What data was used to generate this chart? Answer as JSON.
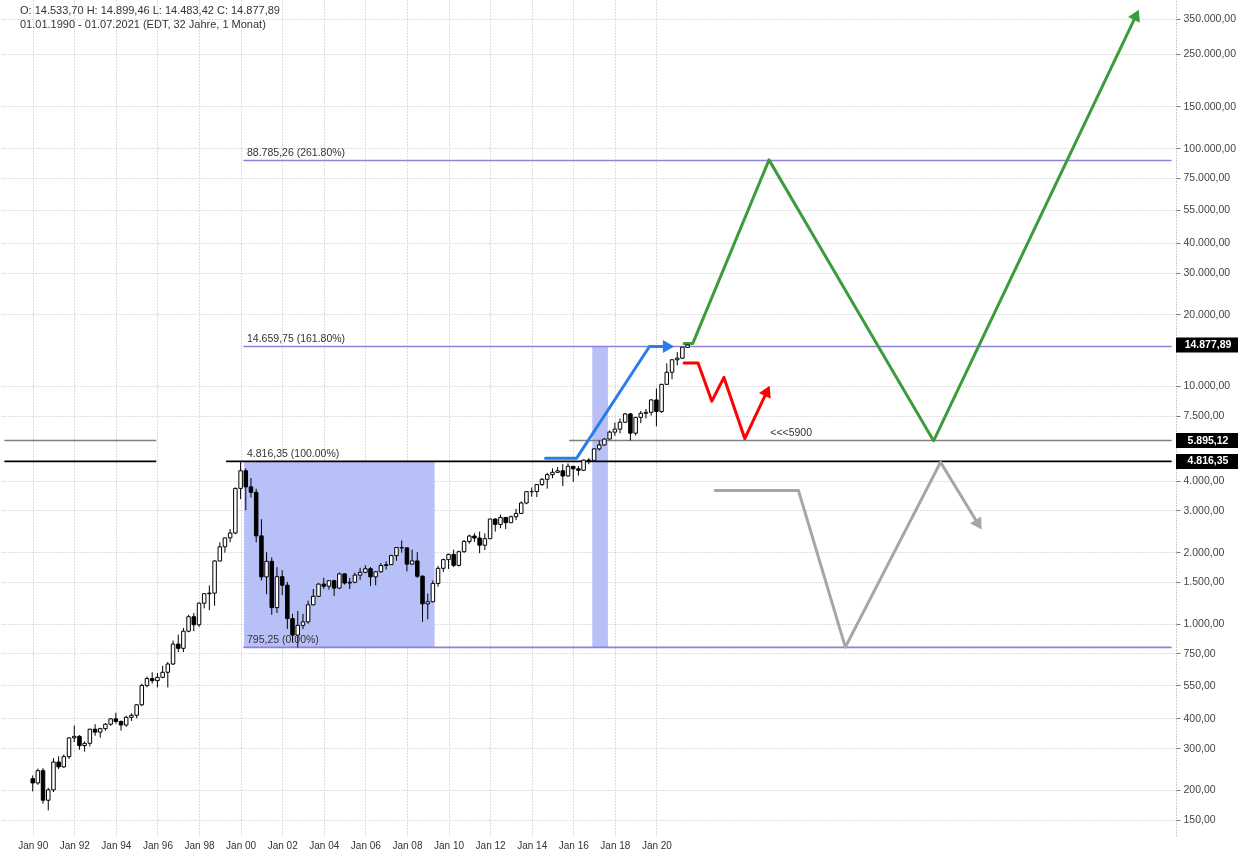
{
  "chart_data": {
    "type": "candlestick",
    "title": "O: 14.533,70 H: 14.899,46 L: 14.483,42 C: 14.877,89",
    "subtitle": "01.01.1990 - 01.07.2021 (EDT, 32 Jahre, 1 Monat)",
    "series": [
      {
        "name": "14.877,89",
        "color": "#000000",
        "x": [
          "1990-01",
          "1990-04",
          "1990-07",
          "1990-10",
          "1991-01",
          "1991-04",
          "1991-07",
          "1991-10",
          "1992-01",
          "1992-04",
          "1992-07",
          "1992-10",
          "1993-01",
          "1993-04",
          "1993-07",
          "1993-10",
          "1994-01",
          "1994-04",
          "1994-07",
          "1994-10",
          "1995-01",
          "1995-04",
          "1995-07",
          "1995-10",
          "1996-01",
          "1996-04",
          "1996-07",
          "1996-10",
          "1997-01",
          "1997-04",
          "1997-07",
          "1997-10",
          "1998-01",
          "1998-04",
          "1998-07",
          "1998-10",
          "1999-01",
          "1999-04",
          "1999-07",
          "1999-10",
          "2000-01",
          "2000-04",
          "2000-07",
          "2000-10",
          "2001-01",
          "2001-04",
          "2001-07",
          "2001-10",
          "2002-01",
          "2002-04",
          "2002-07",
          "2002-10",
          "2003-01",
          "2003-04",
          "2003-07",
          "2003-10",
          "2004-01",
          "2004-04",
          "2004-07",
          "2004-10",
          "2005-01",
          "2005-04",
          "2005-07",
          "2005-10",
          "2006-01",
          "2006-04",
          "2006-07",
          "2006-10",
          "2007-01",
          "2007-04",
          "2007-07",
          "2007-10",
          "2008-01",
          "2008-04",
          "2008-07",
          "2008-10",
          "2009-01",
          "2009-04",
          "2009-07",
          "2009-10",
          "2010-01",
          "2010-04",
          "2010-07",
          "2010-10",
          "2011-01",
          "2011-04",
          "2011-07",
          "2011-10",
          "2012-01",
          "2012-04",
          "2012-07",
          "2012-10",
          "2013-01",
          "2013-04",
          "2013-07",
          "2013-10",
          "2014-01",
          "2014-04",
          "2014-07",
          "2014-10",
          "2015-01",
          "2015-04",
          "2015-07",
          "2015-10",
          "2016-01",
          "2016-04",
          "2016-07",
          "2016-10",
          "2017-01",
          "2017-04",
          "2017-07",
          "2017-10",
          "2018-01",
          "2018-04",
          "2018-07",
          "2018-10",
          "2019-01",
          "2019-04",
          "2019-07",
          "2019-10",
          "2020-01",
          "2020-04",
          "2020-07",
          "2020-10",
          "2021-01",
          "2021-04",
          "2021-07"
        ],
        "ohlc": [
          [
            223,
            230,
            197,
            214
          ],
          [
            214,
            246,
            210,
            241
          ],
          [
            241,
            247,
            175,
            181
          ],
          [
            181,
            204,
            164,
            200
          ],
          [
            200,
            272,
            196,
            262
          ],
          [
            262,
            277,
            245,
            250
          ],
          [
            250,
            282,
            248,
            276
          ],
          [
            276,
            333,
            270,
            331
          ],
          [
            331,
            373,
            318,
            336
          ],
          [
            336,
            340,
            295,
            307
          ],
          [
            307,
            320,
            290,
            314
          ],
          [
            314,
            362,
            305,
            360
          ],
          [
            360,
            378,
            338,
            350
          ],
          [
            350,
            365,
            332,
            362
          ],
          [
            362,
            382,
            355,
            378
          ],
          [
            378,
            400,
            372,
            398
          ],
          [
            398,
            422,
            380,
            388
          ],
          [
            388,
            392,
            355,
            375
          ],
          [
            375,
            410,
            368,
            404
          ],
          [
            404,
            420,
            390,
            412
          ],
          [
            412,
            458,
            400,
            456
          ],
          [
            456,
            560,
            450,
            550
          ],
          [
            550,
            600,
            540,
            588
          ],
          [
            588,
            625,
            560,
            576
          ],
          [
            576,
            620,
            540,
            595
          ],
          [
            595,
            665,
            590,
            625
          ],
          [
            625,
            690,
            540,
            677
          ],
          [
            677,
            850,
            670,
            821
          ],
          [
            821,
            900,
            760,
            788
          ],
          [
            788,
            960,
            760,
            930
          ],
          [
            930,
            1090,
            920,
            1070
          ],
          [
            1070,
            1110,
            930,
            990
          ],
          [
            990,
            1230,
            970,
            1220
          ],
          [
            1220,
            1340,
            1160,
            1337
          ],
          [
            1337,
            1450,
            1140,
            1345
          ],
          [
            1345,
            1850,
            1190,
            1836
          ],
          [
            1836,
            2200,
            1830,
            2106
          ],
          [
            2106,
            2300,
            1990,
            2296
          ],
          [
            2296,
            2500,
            2200,
            2407
          ],
          [
            2407,
            3740,
            2380,
            3708
          ],
          [
            3708,
            4816.35,
            3340,
            4398
          ],
          [
            4398,
            4500,
            3000,
            3763
          ],
          [
            3763,
            4100,
            3400,
            3570
          ],
          [
            3570,
            3700,
            2200,
            2342
          ],
          [
            2342,
            2750,
            1520,
            1574
          ],
          [
            1574,
            2000,
            1330,
            1830
          ],
          [
            1830,
            1900,
            1090,
            1169
          ],
          [
            1169,
            1730,
            1110,
            1577
          ],
          [
            1577,
            1680,
            1320,
            1452
          ],
          [
            1452,
            1500,
            950,
            1051
          ],
          [
            1051,
            1100,
            835,
            896
          ],
          [
            896,
            1130,
            795.25,
            984
          ],
          [
            984,
            1100,
            950,
            1018
          ],
          [
            1018,
            1250,
            1000,
            1201
          ],
          [
            1201,
            1400,
            1195,
            1304
          ],
          [
            1304,
            1480,
            1300,
            1468
          ],
          [
            1468,
            1560,
            1400,
            1438
          ],
          [
            1438,
            1520,
            1390,
            1517
          ],
          [
            1517,
            1530,
            1310,
            1412
          ],
          [
            1412,
            1640,
            1400,
            1621
          ],
          [
            1621,
            1630,
            1460,
            1483
          ],
          [
            1483,
            1560,
            1400,
            1494
          ],
          [
            1494,
            1640,
            1480,
            1601
          ],
          [
            1601,
            1720,
            1530,
            1645
          ],
          [
            1645,
            1760,
            1630,
            1703
          ],
          [
            1703,
            1730,
            1440,
            1575
          ],
          [
            1575,
            1660,
            1450,
            1654
          ],
          [
            1654,
            1800,
            1640,
            1757
          ],
          [
            1757,
            1830,
            1690,
            1772
          ],
          [
            1772,
            1950,
            1770,
            1934
          ],
          [
            1934,
            2100,
            1840,
            2091
          ],
          [
            2091,
            2240,
            1990,
            2085
          ],
          [
            2085,
            2090,
            1660,
            1781
          ],
          [
            1781,
            2050,
            1770,
            1837
          ],
          [
            1837,
            2000,
            1560,
            1584
          ],
          [
            1584,
            1600,
            1018,
            1212
          ],
          [
            1212,
            1340,
            1043,
            1237
          ],
          [
            1237,
            1520,
            1230,
            1477
          ],
          [
            1477,
            1750,
            1430,
            1710
          ],
          [
            1710,
            1880,
            1650,
            1860
          ],
          [
            1860,
            1970,
            1700,
            1957
          ],
          [
            1957,
            2050,
            1730,
            1760
          ],
          [
            1760,
            2030,
            1740,
            2008
          ],
          [
            2008,
            2250,
            1990,
            2218
          ],
          [
            2218,
            2370,
            2170,
            2338
          ],
          [
            2338,
            2400,
            2210,
            2294
          ],
          [
            2294,
            2440,
            1980,
            2139
          ],
          [
            2139,
            2400,
            2040,
            2278
          ],
          [
            2278,
            2770,
            2270,
            2755
          ],
          [
            2755,
            2780,
            2440,
            2616
          ],
          [
            2616,
            2880,
            2520,
            2799
          ],
          [
            2799,
            2810,
            2500,
            2661
          ],
          [
            2661,
            2850,
            2650,
            2819
          ],
          [
            2819,
            3040,
            2730,
            2910
          ],
          [
            2910,
            3270,
            2900,
            3219
          ],
          [
            3219,
            3600,
            3180,
            3592
          ],
          [
            3592,
            3740,
            3420,
            3596
          ],
          [
            3596,
            3860,
            3410,
            3849
          ],
          [
            3849,
            4100,
            3800,
            4050
          ],
          [
            4050,
            4310,
            3700,
            4236
          ],
          [
            4236,
            4500,
            4090,
            4334
          ],
          [
            4334,
            4560,
            4300,
            4397
          ],
          [
            4397,
            4690,
            3790,
            4181
          ],
          [
            4181,
            4720,
            4170,
            4593
          ],
          [
            4593,
            4600,
            3950,
            4483
          ],
          [
            4483,
            4600,
            4200,
            4418
          ],
          [
            4418,
            4900,
            4400,
            4876
          ],
          [
            4876,
            4970,
            4690,
            4864
          ],
          [
            4864,
            5460,
            4840,
            5436
          ],
          [
            5436,
            5900,
            5350,
            5647
          ],
          [
            5647,
            6020,
            5600,
            5980
          ],
          [
            5980,
            6500,
            5970,
            6396
          ],
          [
            6396,
            7020,
            6170,
            6581
          ],
          [
            6581,
            7300,
            6320,
            7040
          ],
          [
            7040,
            7700,
            7000,
            7627
          ],
          [
            7627,
            7700,
            5900,
            6330
          ],
          [
            6330,
            7400,
            6190,
            7378
          ],
          [
            7378,
            7850,
            6980,
            7672
          ],
          [
            7672,
            8000,
            7300,
            7750
          ],
          [
            7750,
            8800,
            7500,
            8733
          ],
          [
            8733,
            9760,
            6770,
            7813
          ],
          [
            7813,
            10210,
            7700,
            10157
          ],
          [
            10157,
            12440,
            10150,
            11418
          ],
          [
            11418,
            12930,
            10680,
            12888
          ],
          [
            12888,
            13880,
            12210,
            13091
          ],
          [
            13091,
            14580,
            12990,
            14555
          ],
          [
            14533.7,
            14899.46,
            14483.42,
            14877.89
          ]
        ]
      },
      {
        "type": "line",
        "color": "#b8c0f8",
        "x": [
          "2000-03",
          "2009-05"
        ],
        "values": [
          null,
          null
        ],
        "lower": [
          795.25,
          795.25
        ],
        "upper": [
          4816.35,
          4816.35
        ]
      },
      {
        "type": "line",
        "color": "#b8c0f8",
        "x": [
          "2016-12",
          "2017-09"
        ],
        "values": [
          null,
          null
        ],
        "lower": [
          795.25,
          795.25
        ],
        "upper": [
          14659.75,
          14659.75
        ]
      },
      {
        "type": "step",
        "color": "#8f82d8",
        "x": [
          "2000-03",
          "2044-10"
        ],
        "values": [
          88785.26,
          88785.26
        ]
      },
      {
        "type": "step",
        "color": "#8f82d8",
        "x": [
          "2000-03",
          "2044-10"
        ],
        "values": [
          14659.75,
          14659.75
        ]
      },
      {
        "type": "step",
        "color": "#8f82d8",
        "x": [
          "2000-03",
          "2044-10"
        ],
        "values": [
          795.25,
          795.25
        ]
      },
      {
        "type": "step",
        "color": "#808080",
        "x": [
          "1988-09",
          "1995-12"
        ],
        "values": [
          5895.12,
          5895.12
        ]
      },
      {
        "type": "step",
        "name": "5.895,12",
        "color": "#808080",
        "x": [
          "2015-11",
          "2044-10"
        ],
        "values": [
          5895.12,
          5895.12
        ]
      },
      {
        "type": "step",
        "color": "#000000",
        "x": [
          "1988-09",
          "1995-12"
        ],
        "values": [
          4816.35,
          4816.35
        ]
      },
      {
        "type": "step",
        "name": "4.816,35",
        "color": "#000000",
        "x": [
          "1999-05",
          "2044-10"
        ],
        "values": [
          4816.35,
          4816.35
        ]
      },
      {
        "type": "line",
        "color": "#2b7de9",
        "x": [
          "2014-09",
          "2016-03",
          "2019-09",
          "2020-08"
        ],
        "values": [
          4970,
          4970,
          14660,
          14660
        ]
      },
      {
        "type": "line",
        "color": "#3c9c3c",
        "x": [
          "2021-05",
          "2021-10",
          "2025-06",
          "2033-05",
          "2043-02"
        ],
        "values": [
          15100,
          15100,
          89300,
          5880,
          364000
        ]
      },
      {
        "type": "line",
        "color": "#ff0000",
        "x": [
          "2021-05",
          "2022-01",
          "2022-09",
          "2023-04",
          "2024-04",
          "2025-05"
        ],
        "values": [
          12500,
          12500,
          8630,
          10860,
          6010,
          9540
        ]
      },
      {
        "type": "line",
        "color": "#a6a6a6",
        "x": [
          "2022-11",
          "2026-11",
          "2029-02",
          "2033-09",
          "2035-07"
        ],
        "values": [
          3630,
          3630,
          797,
          4780,
          2610
        ]
      }
    ],
    "annotations": [
      {
        "text": "88.785,26 (261.80%)",
        "x": "2000-03",
        "y": 88785.26
      },
      {
        "text": "14.659,75 (161.80%)",
        "x": "2000-03",
        "y": 14659.75
      },
      {
        "text": "4.816,35 (100.00%)",
        "x": "2000-03",
        "y": 4816.35
      },
      {
        "text": "795,25 (0.00%)",
        "x": "2000-03",
        "y": 795.25
      },
      {
        "text": "<<<5900",
        "x": "2025-05",
        "y": 5900
      }
    ],
    "xlim": [
      "1988-09",
      "2044-10"
    ],
    "xticks": [
      {
        "value": "1990-01",
        "label": "Jan 90"
      },
      {
        "value": "1992-01",
        "label": "Jan 92"
      },
      {
        "value": "1994-01",
        "label": "Jan 94"
      },
      {
        "value": "1996-01",
        "label": "Jan 96"
      },
      {
        "value": "1998-01",
        "label": "Jan 98"
      },
      {
        "value": "2000-01",
        "label": "Jan 00"
      },
      {
        "value": "2002-01",
        "label": "Jan 02"
      },
      {
        "value": "2004-01",
        "label": "Jan 04"
      },
      {
        "value": "2006-01",
        "label": "Jan 06"
      },
      {
        "value": "2008-01",
        "label": "Jan 08"
      },
      {
        "value": "2010-01",
        "label": "Jan 10"
      },
      {
        "value": "2012-01",
        "label": "Jan 12"
      },
      {
        "value": "2014-01",
        "label": "Jan 14"
      },
      {
        "value": "2016-01",
        "label": "Jan 16"
      },
      {
        "value": "2018-01",
        "label": "Jan 18"
      },
      {
        "value": "2020-01",
        "label": "Jan 20"
      }
    ],
    "ylim": [
      128,
      420000
    ],
    "yticks": [
      {
        "value": 150,
        "label": "150,00"
      },
      {
        "value": 200,
        "label": "200,00"
      },
      {
        "value": 300,
        "label": "300,00"
      },
      {
        "value": 400,
        "label": "400,00"
      },
      {
        "value": 550,
        "label": "550,00"
      },
      {
        "value": 750,
        "label": "750,00"
      },
      {
        "value": 1000,
        "label": "1.000,00"
      },
      {
        "value": 1500,
        "label": "1.500,00"
      },
      {
        "value": 2000,
        "label": "2.000,00"
      },
      {
        "value": 3000,
        "label": "3.000,00"
      },
      {
        "value": 4000,
        "label": "4.000,00"
      },
      {
        "value": 7500,
        "label": "7.500,00"
      },
      {
        "value": 10000,
        "label": "10.000,00"
      },
      {
        "value": 20000,
        "label": "20.000,00"
      },
      {
        "value": 30000,
        "label": "30.000,00"
      },
      {
        "value": 40000,
        "label": "40.000,00"
      },
      {
        "value": 55000,
        "label": "55.000,00"
      },
      {
        "value": 75000,
        "label": "75.000,00"
      },
      {
        "value": 100000,
        "label": "100.000,00"
      },
      {
        "value": 150000,
        "label": "150.000,00"
      },
      {
        "value": 250000,
        "label": "250.000,00"
      },
      {
        "value": 350000,
        "label": "350.000,00"
      }
    ],
    "log": "y",
    "grid": true
  }
}
